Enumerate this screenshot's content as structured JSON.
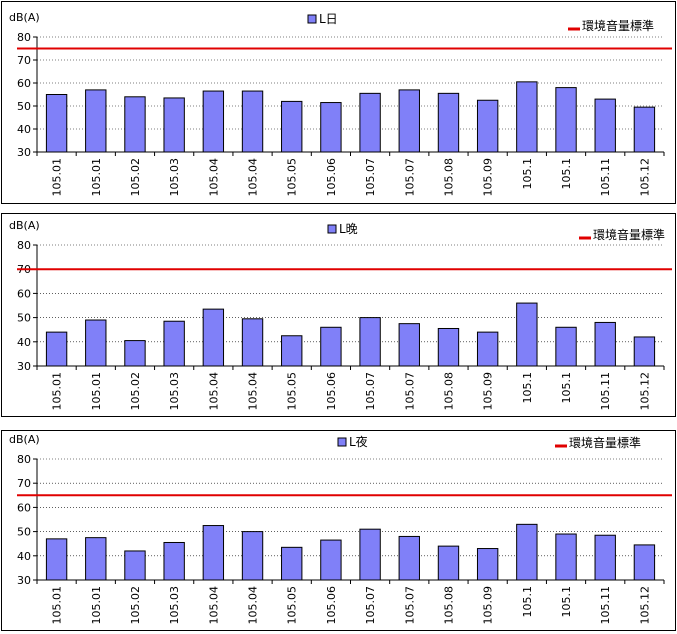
{
  "chart_data": [
    {
      "type": "bar",
      "ylabel": "dB(A)",
      "ylim": [
        30,
        80
      ],
      "yticks": [
        30,
        40,
        50,
        60,
        70,
        80
      ],
      "grid": true,
      "legend_placement": "top",
      "categories": [
        "105.01",
        "105.01",
        "105.02",
        "105.03",
        "105.04",
        "105.04",
        "105.05",
        "105.06",
        "105.07",
        "105.07",
        "105.08",
        "105.09",
        "105.1",
        "105.1",
        "105.11",
        "105.12"
      ],
      "series": [
        {
          "name": "L日",
          "type": "bar",
          "color": "#8080f8",
          "values": [
            55,
            57,
            54,
            53.5,
            56.5,
            56.5,
            52,
            51.5,
            55.5,
            57,
            55.5,
            52.5,
            60.5,
            58,
            53,
            49.5
          ]
        }
      ],
      "reference_line": {
        "name": "環境音量標準",
        "value": 75,
        "color": "#e00000"
      }
    },
    {
      "type": "bar",
      "ylabel": "dB(A)",
      "ylim": [
        30,
        80
      ],
      "yticks": [
        30,
        40,
        50,
        60,
        70,
        80
      ],
      "grid": true,
      "legend_placement": "top",
      "categories": [
        "105.01",
        "105.01",
        "105.02",
        "105.03",
        "105.04",
        "105.04",
        "105.05",
        "105.06",
        "105.07",
        "105.07",
        "105.08",
        "105.09",
        "105.1",
        "105.1",
        "105.11",
        "105.12"
      ],
      "series": [
        {
          "name": "L晚",
          "type": "bar",
          "color": "#8080f8",
          "values": [
            44,
            49,
            40.5,
            48.5,
            53.5,
            49.5,
            42.5,
            46,
            50,
            47.5,
            45.5,
            44,
            56,
            46,
            48,
            42
          ]
        }
      ],
      "reference_line": {
        "name": "環境音量標準",
        "value": 70,
        "color": "#e00000"
      }
    },
    {
      "type": "bar",
      "ylabel": "dB(A)",
      "ylim": [
        30,
        80
      ],
      "yticks": [
        30,
        40,
        50,
        60,
        70,
        80
      ],
      "grid": true,
      "legend_placement": "top",
      "categories": [
        "105.01",
        "105.01",
        "105.02",
        "105.03",
        "105.04",
        "105.04",
        "105.05",
        "105.06",
        "105.07",
        "105.07",
        "105.08",
        "105.09",
        "105.1",
        "105.1",
        "105.11",
        "105.12"
      ],
      "series": [
        {
          "name": "L夜",
          "type": "bar",
          "color": "#8080f8",
          "values": [
            47,
            47.5,
            42,
            45.5,
            52.5,
            50,
            43.5,
            46.5,
            51,
            48,
            44,
            43,
            53,
            49,
            48.5,
            44.5
          ]
        }
      ],
      "reference_line": {
        "name": "環境音量標準",
        "value": 65,
        "color": "#e00000"
      }
    }
  ]
}
